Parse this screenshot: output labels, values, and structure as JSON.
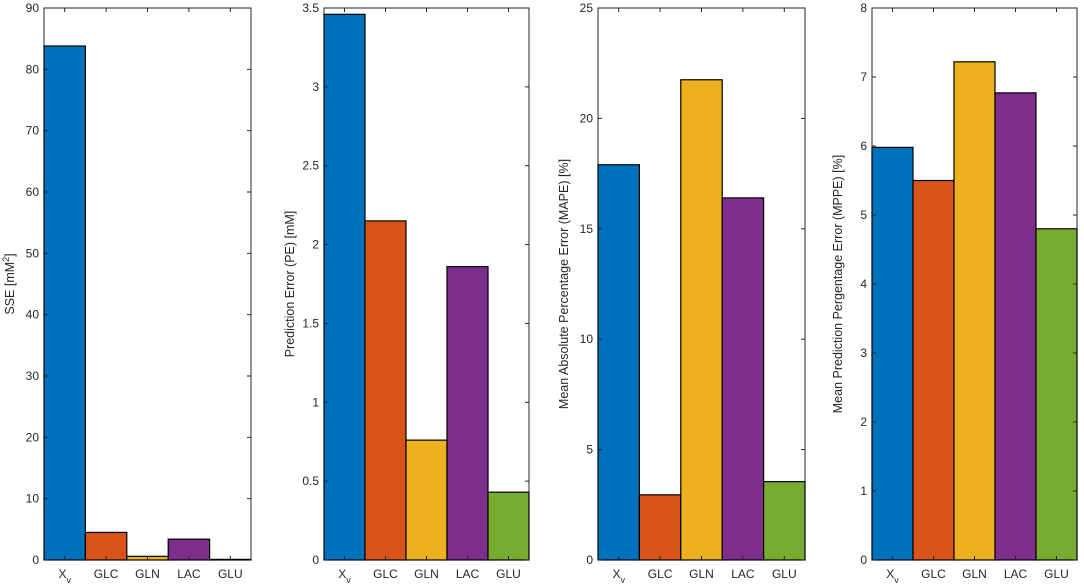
{
  "chart_data": [
    {
      "type": "bar",
      "categories": [
        "X_v",
        "GLC",
        "GLN",
        "LAC",
        "GLU"
      ],
      "values": [
        83.8,
        4.5,
        0.6,
        3.4,
        0.1
      ],
      "ylabel": "SSE [mM²]",
      "ylim": [
        0,
        90
      ],
      "yticks": [
        0,
        10,
        20,
        30,
        40,
        50,
        60,
        70,
        80,
        90
      ]
    },
    {
      "type": "bar",
      "categories": [
        "X_v",
        "GLC",
        "GLN",
        "LAC",
        "GLU"
      ],
      "values": [
        3.46,
        2.15,
        0.76,
        1.86,
        0.43
      ],
      "ylabel": "Prediction Error (PE) [mM]",
      "ylim": [
        0,
        3.5
      ],
      "yticks": [
        0,
        0.5,
        1,
        1.5,
        2,
        2.5,
        3,
        3.5
      ]
    },
    {
      "type": "bar",
      "categories": [
        "X_v",
        "GLC",
        "GLN",
        "LAC",
        "GLU"
      ],
      "values": [
        17.9,
        2.95,
        21.75,
        16.4,
        3.55
      ],
      "ylabel": "Mean Absolute Percentage Error (MAPE) [%]",
      "ylim": [
        0,
        25
      ],
      "yticks": [
        0,
        5,
        10,
        15,
        20,
        25
      ]
    },
    {
      "type": "bar",
      "categories": [
        "X_v",
        "GLC",
        "GLN",
        "LAC",
        "GLU"
      ],
      "values": [
        5.98,
        5.5,
        7.22,
        6.77,
        4.8
      ],
      "ylabel": "Mean Prediction Pergentage Error (MPPE) [%]",
      "ylim": [
        0,
        8
      ],
      "yticks": [
        0,
        1,
        2,
        3,
        4,
        5,
        6,
        7,
        8
      ]
    }
  ],
  "colors": [
    "#0072bd",
    "#d95319",
    "#edb120",
    "#7e2f8e",
    "#77ac30"
  ]
}
